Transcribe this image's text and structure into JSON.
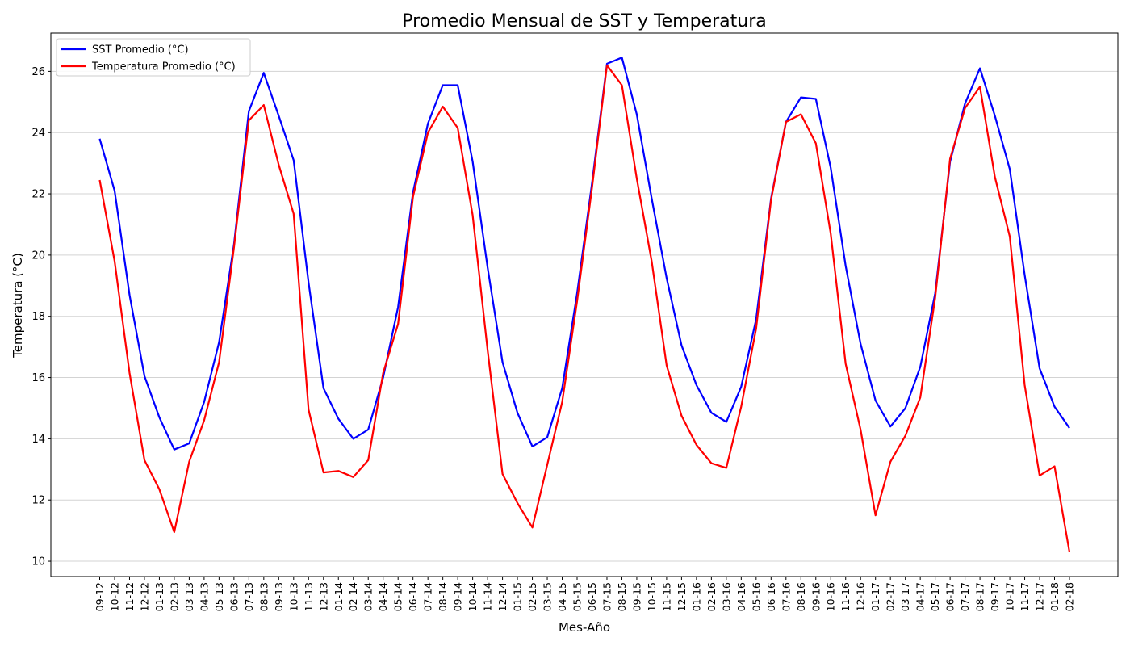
{
  "chart_data": {
    "type": "line",
    "title": "Promedio Mensual de SST y Temperatura",
    "xlabel": "Mes-Año",
    "ylabel": "Temperatura (°C)",
    "ylim": [
      9.5,
      27.25
    ],
    "yticks": [
      10,
      12,
      14,
      16,
      18,
      20,
      22,
      24,
      26
    ],
    "grid": "horizontal",
    "legend_position": "top-left",
    "categories": [
      "09-12",
      "10-12",
      "11-12",
      "12-12",
      "01-13",
      "02-13",
      "03-13",
      "04-13",
      "05-13",
      "06-13",
      "07-13",
      "08-13",
      "09-13",
      "10-13",
      "11-13",
      "12-13",
      "01-14",
      "02-14",
      "03-14",
      "04-14",
      "05-14",
      "06-14",
      "07-14",
      "08-14",
      "09-14",
      "10-14",
      "11-14",
      "12-14",
      "01-15",
      "02-15",
      "03-15",
      "04-15",
      "05-15",
      "06-15",
      "07-15",
      "08-15",
      "09-15",
      "10-15",
      "11-15",
      "12-15",
      "01-16",
      "02-16",
      "03-16",
      "04-16",
      "05-16",
      "06-16",
      "07-16",
      "08-16",
      "09-16",
      "10-16",
      "11-16",
      "12-16",
      "01-17",
      "02-17",
      "03-17",
      "04-17",
      "05-17",
      "06-17",
      "07-17",
      "08-17",
      "09-17",
      "10-17",
      "11-17",
      "12-17",
      "01-18",
      "02-18"
    ],
    "series": [
      {
        "name": "SST Promedio (°C)",
        "color": "#0000ff",
        "values": [
          23.8,
          22.1,
          18.7,
          16.05,
          14.7,
          13.65,
          13.85,
          15.2,
          17.15,
          20.35,
          24.7,
          25.95,
          24.55,
          23.1,
          19.1,
          15.65,
          14.65,
          14.0,
          14.3,
          16.0,
          18.3,
          22.05,
          24.3,
          25.55,
          25.55,
          23.05,
          19.6,
          16.5,
          14.85,
          13.75,
          14.05,
          15.65,
          18.75,
          22.35,
          26.25,
          26.45,
          24.6,
          21.85,
          19.25,
          17.05,
          15.75,
          14.85,
          14.55,
          15.7,
          17.9,
          21.85,
          24.35,
          25.15,
          25.1,
          22.85,
          19.65,
          17.1,
          15.25,
          14.4,
          15.0,
          16.35,
          18.75,
          23.05,
          24.95,
          26.1,
          24.55,
          22.8,
          19.35,
          16.3,
          15.05,
          14.35
        ]
      },
      {
        "name": "Temperatura Promedio (°C)",
        "color": "#ff0000",
        "values": [
          22.45,
          19.8,
          16.15,
          13.3,
          12.35,
          10.95,
          13.25,
          14.6,
          16.5,
          20.25,
          24.4,
          24.9,
          22.95,
          21.35,
          14.95,
          12.9,
          12.95,
          12.75,
          13.3,
          16.15,
          17.75,
          21.9,
          24.0,
          24.85,
          24.15,
          21.3,
          16.9,
          12.85,
          11.9,
          11.1,
          13.15,
          15.2,
          18.5,
          22.2,
          26.2,
          25.55,
          22.5,
          19.8,
          16.4,
          14.75,
          13.8,
          13.2,
          13.05,
          15.05,
          17.6,
          21.8,
          24.35,
          24.6,
          23.65,
          20.7,
          16.45,
          14.3,
          11.5,
          13.25,
          14.1,
          15.35,
          18.6,
          23.15,
          24.8,
          25.5,
          22.55,
          20.6,
          15.75,
          12.8,
          13.1,
          10.3
        ]
      }
    ]
  }
}
